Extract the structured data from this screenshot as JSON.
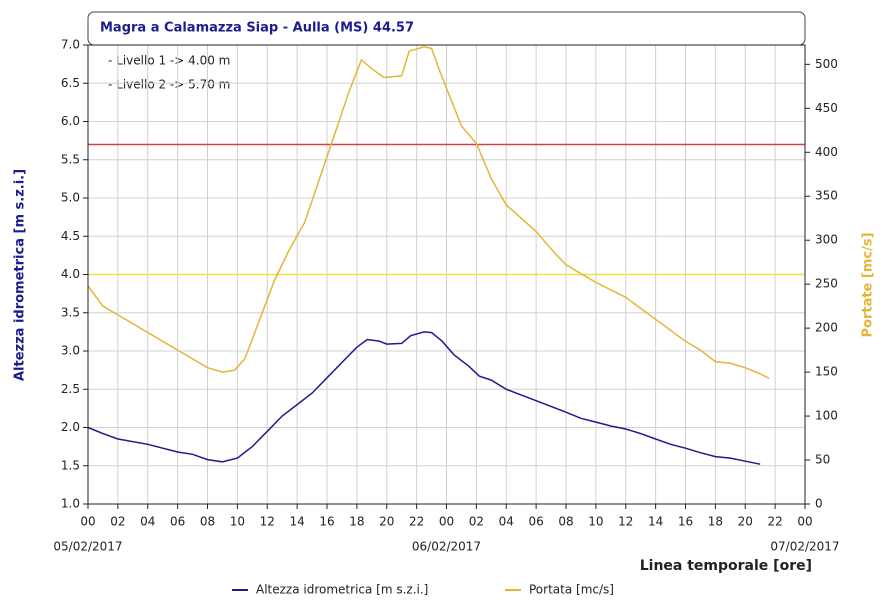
{
  "chart_data": {
    "type": "line",
    "title": "Magra a Calamazza Siap - Aulla (MS) 44.57",
    "y_label": "Altezza idrometrica [m s.z.i.]",
    "y2_label": "Portate [mc/s]",
    "x_label": "Linea temporale [ore]",
    "annotations": [
      "- Livello 1 -> 4.00 m",
      "- Livello 2 -> 5.70 m"
    ],
    "thresholds": [
      {
        "value": 4.0,
        "color": "#f0e040"
      },
      {
        "value": 5.7,
        "color": "#d04040"
      }
    ],
    "xlim": [
      0,
      48
    ],
    "xticks": [
      {
        "value": 0,
        "label": "00"
      },
      {
        "value": 2,
        "label": "02"
      },
      {
        "value": 4,
        "label": "04"
      },
      {
        "value": 6,
        "label": "06"
      },
      {
        "value": 8,
        "label": "08"
      },
      {
        "value": 10,
        "label": "10"
      },
      {
        "value": 12,
        "label": "12"
      },
      {
        "value": 14,
        "label": "14"
      },
      {
        "value": 16,
        "label": "16"
      },
      {
        "value": 18,
        "label": "18"
      },
      {
        "value": 20,
        "label": "20"
      },
      {
        "value": 22,
        "label": "22"
      },
      {
        "value": 24,
        "label": "00"
      },
      {
        "value": 26,
        "label": "02"
      },
      {
        "value": 28,
        "label": "04"
      },
      {
        "value": 30,
        "label": "06"
      },
      {
        "value": 32,
        "label": "08"
      },
      {
        "value": 34,
        "label": "10"
      },
      {
        "value": 36,
        "label": "12"
      },
      {
        "value": 38,
        "label": "14"
      },
      {
        "value": 40,
        "label": "16"
      },
      {
        "value": 42,
        "label": "18"
      },
      {
        "value": 44,
        "label": "20"
      },
      {
        "value": 46,
        "label": "22"
      },
      {
        "value": 48,
        "label": "00"
      }
    ],
    "date_labels": [
      {
        "value": 0,
        "label": "05/02/2017"
      },
      {
        "value": 24,
        "label": "06/02/2017"
      },
      {
        "value": 48,
        "label": "07/02/2017"
      }
    ],
    "ylim": [
      1,
      7
    ],
    "yticks": [
      {
        "value": 1,
        "label": "1.0"
      },
      1.5,
      {
        "value": 2,
        "label": "2.0"
      },
      2.5,
      {
        "value": 3,
        "label": "3.0"
      },
      3.5,
      {
        "value": 4,
        "label": "4.0"
      },
      4.5,
      {
        "value": 5,
        "label": "5.0"
      },
      5.5,
      {
        "value": 6,
        "label": "6.0"
      },
      6.5,
      {
        "value": 7,
        "label": "7.0"
      }
    ],
    "y2lim": [
      0,
      522
    ],
    "y2ticks": [
      0,
      50,
      100,
      150,
      200,
      250,
      300,
      350,
      400,
      450,
      500
    ],
    "grid": true,
    "series": [
      {
        "name": "Altezza idrometrica [m s.z.i.]",
        "color": "#1c1c8e",
        "x": [
          0,
          1,
          2,
          4,
          6,
          7,
          8,
          9,
          10,
          11,
          12,
          13,
          14,
          15,
          16,
          17,
          18,
          18.7,
          19.5,
          20,
          21,
          21.6,
          22.5,
          23,
          23.7,
          24.5,
          25.5,
          26.2,
          27,
          28,
          30,
          32,
          33,
          34,
          35,
          36,
          37,
          38,
          39,
          40,
          41,
          42,
          43,
          44,
          45
        ],
        "values": [
          2.0,
          1.92,
          1.85,
          1.78,
          1.68,
          1.65,
          1.58,
          1.55,
          1.6,
          1.75,
          1.95,
          2.15,
          2.3,
          2.45,
          2.65,
          2.85,
          3.05,
          3.15,
          3.13,
          3.09,
          3.1,
          3.2,
          3.25,
          3.24,
          3.13,
          2.95,
          2.8,
          2.67,
          2.62,
          2.5,
          2.35,
          2.2,
          2.12,
          2.07,
          2.02,
          1.98,
          1.92,
          1.85,
          1.78,
          1.73,
          1.67,
          1.62,
          1.6,
          1.56,
          1.52
        ]
      },
      {
        "name": "Portata [mc/s]",
        "color": "#e3b634",
        "axis": "y2",
        "x": [
          0,
          1,
          2,
          4,
          6,
          7,
          8,
          9,
          9.8,
          10.5,
          11.5,
          12.5,
          13.5,
          14.5,
          15.5,
          16.5,
          17.5,
          18.3,
          19,
          19.8,
          21,
          21.5,
          22.5,
          23,
          23.6,
          24.3,
          25,
          26,
          27,
          28,
          30,
          31,
          32,
          33,
          34,
          36,
          38,
          40,
          41,
          42,
          43,
          44,
          45,
          45.6
        ],
        "values": [
          248,
          225,
          215,
          195,
          175,
          165,
          155,
          150,
          152,
          165,
          210,
          255,
          290,
          320,
          370,
          420,
          470,
          505,
          495,
          485,
          487,
          515,
          520,
          518,
          490,
          460,
          430,
          410,
          370,
          340,
          310,
          290,
          272,
          262,
          252,
          235,
          210,
          185,
          175,
          162,
          160,
          155,
          148,
          143
        ]
      }
    ]
  }
}
